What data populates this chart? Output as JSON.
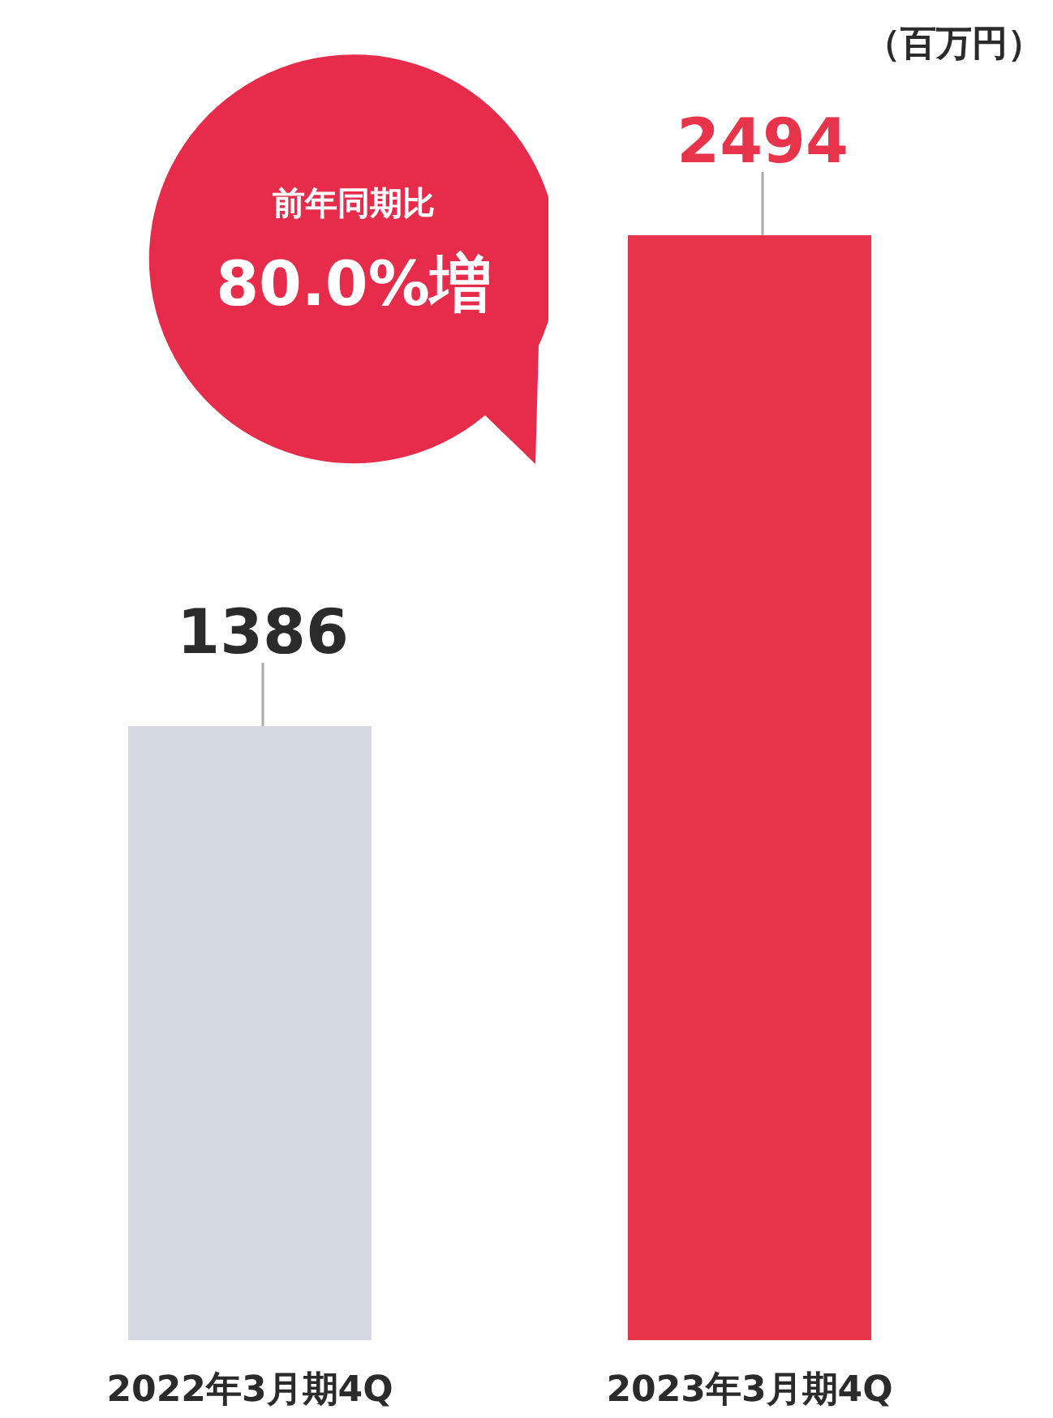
{
  "chart_data": {
    "type": "bar",
    "categories": [
      "2022年3月期4Q",
      "2023年3月期4Q"
    ],
    "values": [
      1386,
      2494
    ],
    "colors": [
      "#d5dae2",
      "#e8344b"
    ],
    "data_labels": true,
    "ylabel": "（百万円）",
    "annotations": [
      "前年同期比",
      "80.0%増"
    ]
  }
}
